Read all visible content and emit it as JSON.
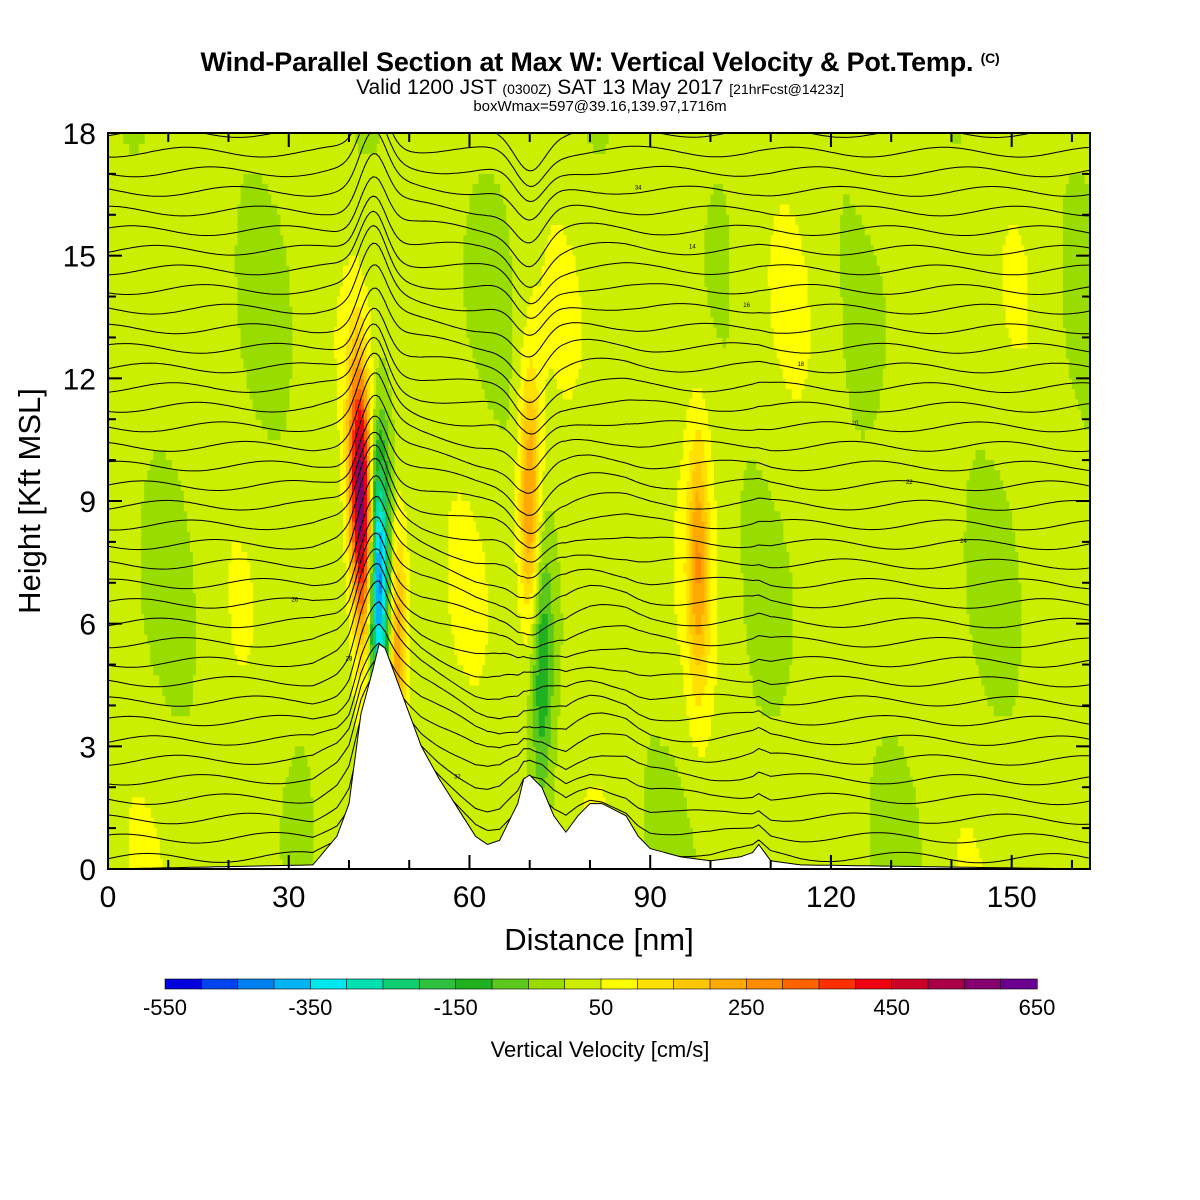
{
  "title": {
    "main": "Wind-Parallel Section at Max W: Vertical Velocity & Pot.Temp.",
    "copyright": "(C)",
    "valid_prefix": "Valid 1200 JST",
    "valid_utc": "(0300Z)",
    "valid_date": "SAT 13 May 2017",
    "forecast": "[21hrFcst@1423z]",
    "boxwmax": "boxWmax=597@39.16,139.97,1716m"
  },
  "chart_data": {
    "type": "heatmap",
    "xlabel": "Distance [nm]",
    "ylabel": "Height [Kft MSL]",
    "xlim": [
      0,
      163
    ],
    "ylim": [
      0,
      18
    ],
    "x_ticks": [
      0,
      30,
      60,
      90,
      120,
      150
    ],
    "y_ticks": [
      0,
      3,
      6,
      9,
      12,
      15,
      18
    ],
    "grid": false,
    "colorbar": {
      "title": "Vertical Velocity [cm/s]",
      "min": -550,
      "max": 650,
      "step": 50,
      "tick_labels": [
        "-550",
        "-350",
        "-150",
        "50",
        "250",
        "450",
        "650"
      ],
      "colors": [
        "#0000dd",
        "#0044ee",
        "#0080f0",
        "#00b4f4",
        "#00e8f0",
        "#00e0b0",
        "#10cc70",
        "#30c040",
        "#1fb11f",
        "#5cc81e",
        "#99dd00",
        "#ccee00",
        "#ffff00",
        "#ffe000",
        "#ffc800",
        "#ffaa00",
        "#ff8c00",
        "#ff6400",
        "#ff3000",
        "#ee0010",
        "#cc0028",
        "#aa0048",
        "#880070",
        "#6a0090"
      ]
    },
    "terrain_profile": {
      "x": [
        0,
        34,
        38,
        40,
        42,
        44,
        45,
        46,
        48,
        50,
        52,
        55,
        58,
        61,
        63,
        65,
        66,
        68,
        69,
        70,
        72,
        74,
        76,
        78,
        80,
        82,
        86,
        88,
        90,
        95,
        100,
        105,
        107,
        108,
        109,
        110,
        115,
        163
      ],
      "height_kft": [
        0,
        0.1,
        0.8,
        1.6,
        3.8,
        4.9,
        5.5,
        5.4,
        4.6,
        3.8,
        3.0,
        2.2,
        1.5,
        0.8,
        0.6,
        0.7,
        1.0,
        1.6,
        2.2,
        2.3,
        2.0,
        1.3,
        0.9,
        1.3,
        1.6,
        1.6,
        1.3,
        0.8,
        0.5,
        0.3,
        0.2,
        0.3,
        0.4,
        0.6,
        0.4,
        0.2,
        0.1,
        0
      ]
    },
    "vertical_velocity_features": [
      {
        "x": 42,
        "z_center": 9.0,
        "value": 597,
        "note": "max updraft"
      },
      {
        "x": 45,
        "z_center": 7.0,
        "value": -450,
        "note": "downdraft"
      },
      {
        "x": 48,
        "z_center": 5.5,
        "value": 250
      },
      {
        "x": 70,
        "z_center": 9.0,
        "value": 250
      },
      {
        "x": 72,
        "z_center": 5.0,
        "value": -150
      },
      {
        "x": 98,
        "z_center": 7.5,
        "value": 200
      }
    ],
    "theta_contour_labels": [
      "34",
      "32",
      "30",
      "28",
      "26",
      "24",
      "22",
      "20",
      "18",
      "16",
      "14"
    ]
  }
}
